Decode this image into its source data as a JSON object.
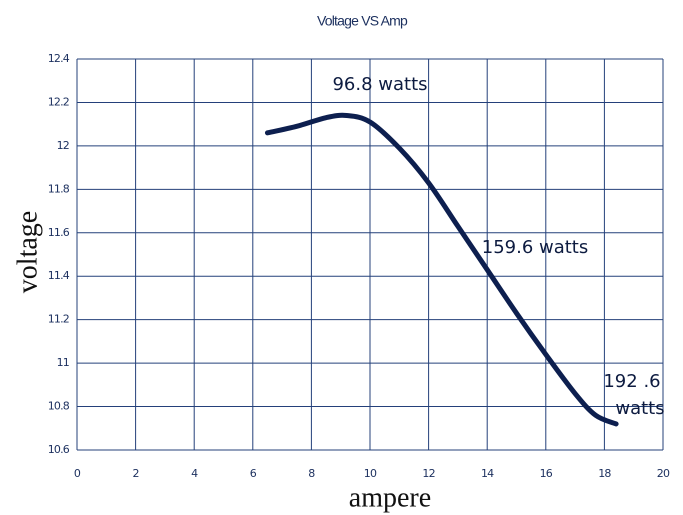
{
  "chart_data": {
    "type": "line",
    "title": "Voltage VS Amp",
    "x_label": "ampere",
    "y_label": "voltage",
    "x": [
      6.5,
      7.5,
      8.5,
      9.2,
      10,
      11,
      12,
      13,
      14,
      15,
      16,
      17,
      17.7,
      18.4
    ],
    "series": [
      {
        "name": "voltage",
        "color": "#0d1f4f",
        "values": [
          12.06,
          12.09,
          12.13,
          12.14,
          12.11,
          11.99,
          11.83,
          11.63,
          11.43,
          11.23,
          11.04,
          10.86,
          10.76,
          10.72
        ]
      }
    ],
    "xlim": [
      0,
      20
    ],
    "xticks": [
      0,
      2,
      4,
      6,
      8,
      10,
      12,
      14,
      16,
      18,
      20
    ],
    "ylim": [
      10.6,
      12.4
    ],
    "yticks": [
      10.6,
      10.8,
      11,
      11.2,
      11.4,
      11.6,
      11.8,
      12,
      12.2,
      12.4
    ],
    "grid": true,
    "annotations": [
      {
        "text": "96.8 watts"
      },
      {
        "text": "159.6 watts"
      },
      {
        "lines": [
          "192 .6",
          "watts"
        ]
      }
    ]
  }
}
